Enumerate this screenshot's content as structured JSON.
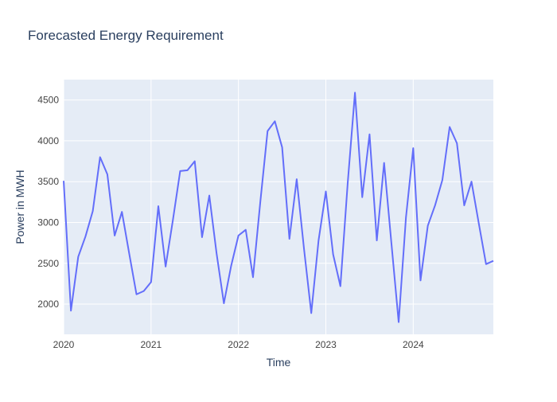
{
  "chart_data": {
    "type": "line",
    "title": "Forecasted Energy Requirement",
    "xlabel": "Time",
    "ylabel": "Power in MWH",
    "x_ticks": [
      "2020",
      "2021",
      "2022",
      "2023",
      "2024"
    ],
    "y_ticks": [
      2000,
      2500,
      3000,
      3500,
      4000,
      4500
    ],
    "xlim": [
      "2020-01",
      "2024-12"
    ],
    "ylim": [
      1630,
      4750
    ],
    "grid": true,
    "colors": {
      "line": "#636efa",
      "plot_bg": "#e5ecf6",
      "grid": "#ffffff",
      "text": "#2a3f5f",
      "tick_text": "#444444"
    },
    "series": [
      {
        "x": [
          "2020-01",
          "2020-02",
          "2020-03",
          "2020-04",
          "2020-05",
          "2020-06",
          "2020-07",
          "2020-08",
          "2020-09",
          "2020-10",
          "2020-11",
          "2020-12",
          "2021-01",
          "2021-02",
          "2021-03",
          "2021-04",
          "2021-05",
          "2021-06",
          "2021-07",
          "2021-08",
          "2021-09",
          "2021-10",
          "2021-11",
          "2021-12",
          "2022-01",
          "2022-02",
          "2022-03",
          "2022-04",
          "2022-05",
          "2022-06",
          "2022-07",
          "2022-08",
          "2022-09",
          "2022-10",
          "2022-11",
          "2022-12",
          "2023-01",
          "2023-02",
          "2023-03",
          "2023-04",
          "2023-05",
          "2023-06",
          "2023-07",
          "2023-08",
          "2023-09",
          "2023-10",
          "2023-11",
          "2023-12",
          "2024-01",
          "2024-02",
          "2024-03",
          "2024-04",
          "2024-05",
          "2024-06",
          "2024-07",
          "2024-08",
          "2024-09",
          "2024-10",
          "2024-11",
          "2024-12"
        ],
        "values": [
          3510,
          1920,
          2580,
          2830,
          3140,
          3800,
          3590,
          2840,
          3130,
          2620,
          2120,
          2160,
          2270,
          3200,
          2460,
          3030,
          3630,
          3640,
          3750,
          2820,
          3330,
          2620,
          2010,
          2470,
          2840,
          2910,
          2330,
          3250,
          4120,
          4240,
          3920,
          2800,
          3530,
          2680,
          1890,
          2780,
          3380,
          2610,
          2220,
          3480,
          4590,
          3310,
          4080,
          2780,
          3730,
          2750,
          1780,
          3060,
          3910,
          2290,
          2960,
          3210,
          3520,
          4170,
          3970,
          3210,
          3500,
          2990,
          2490,
          2530
        ]
      }
    ]
  }
}
